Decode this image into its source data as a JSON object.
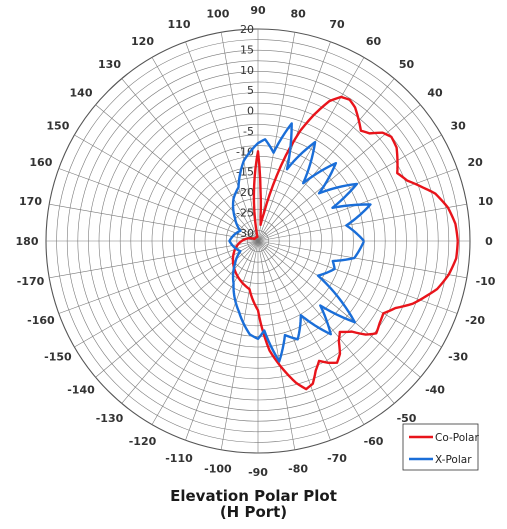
{
  "chart_data": {
    "type": "polar",
    "title": "Elevation Polar Plot",
    "subtitle": "(H Port)",
    "angle_ticks": [
      90,
      80,
      70,
      60,
      50,
      40,
      30,
      20,
      10,
      0,
      -10,
      -20,
      -30,
      -40,
      -50,
      -60,
      -70,
      -80,
      -90,
      -100,
      -110,
      -120,
      -130,
      -140,
      -150,
      -160,
      -170,
      180,
      170,
      160,
      150,
      140,
      130,
      120,
      110,
      100
    ],
    "radial_ticks": [
      20,
      15,
      10,
      5,
      0,
      -5,
      -10,
      -15,
      -20,
      -25,
      -30
    ],
    "radial_range": [
      -32,
      20
    ],
    "grid": true,
    "legend_position": "bottom-right",
    "series": [
      {
        "name": "Co-Polar",
        "color": "#e8141b",
        "angles": [
          0,
          5,
          10,
          15,
          18,
          22,
          26,
          30,
          34,
          38,
          41,
          44,
          47,
          50,
          54,
          57,
          60,
          63,
          66,
          69,
          72,
          75,
          78,
          81,
          84,
          87,
          90,
          100,
          120,
          150,
          180,
          210,
          240,
          260,
          270,
          273,
          276,
          279,
          282,
          285,
          288,
          291,
          294,
          297,
          300,
          303,
          306,
          309,
          312,
          316,
          319,
          322,
          326,
          330,
          334,
          338,
          342,
          345,
          350,
          355
        ],
        "values": [
          17.0,
          16.6,
          15.3,
          13.0,
          10.5,
          7.5,
          6.0,
          7.5,
          9.0,
          9.5,
          8.5,
          6.0,
          5.0,
          6.5,
          8.5,
          9.3,
          8.8,
          6.5,
          2.0,
          -3.0,
          -10.0,
          -18.0,
          -25.0,
          -28.0,
          -26.0,
          -20.0,
          -10.0,
          -31,
          -31,
          -31,
          -28,
          -25,
          -22,
          -20,
          -15,
          -10,
          -5,
          -2,
          1.0,
          4.0,
          6.2,
          5.5,
          2.8,
          1.0,
          2.5,
          3.6,
          2.2,
          -0.5,
          -2.0,
          0.0,
          3.0,
          4.8,
          4.0,
          3.5,
          5.5,
          9.0,
          11.5,
          13.5,
          15.5,
          16.8
        ]
      },
      {
        "name": "X-Polar",
        "color": "#1a6ed8",
        "angles": [
          0,
          10,
          18,
          24,
          30,
          38,
          45,
          52,
          60,
          68,
          74,
          80,
          86,
          90,
          100,
          110,
          120,
          135,
          150,
          165,
          180,
          195,
          210,
          225,
          240,
          255,
          265,
          270,
          274,
          280,
          286,
          292,
          300,
          308,
          314,
          320,
          330,
          340,
          345,
          350,
          355
        ],
        "values": [
          -6.0,
          -10.0,
          -3.0,
          -12.0,
          -4.0,
          -13.0,
          -5.0,
          -14.0,
          -4.0,
          -13.0,
          -2.0,
          -10.0,
          -7.0,
          -8.0,
          -12.0,
          -18.0,
          -20.0,
          -24.0,
          -27.0,
          -26.0,
          -25.0,
          -26.0,
          -27.0,
          -24.0,
          -20.0,
          -14.0,
          -9.0,
          -8.0,
          -10.0,
          -2.0,
          -8.0,
          -6.0,
          -11.0,
          -3.0,
          -10.0,
          -1.0,
          -15.0,
          -12.0,
          -13.0,
          -8.0,
          -7.0
        ]
      }
    ]
  }
}
